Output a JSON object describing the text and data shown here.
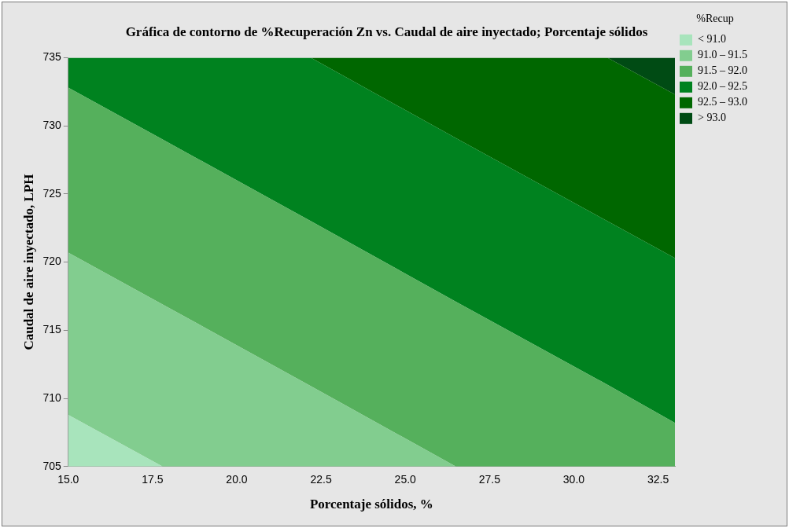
{
  "chart_data": {
    "type": "area",
    "title": "Gráfica de contorno de %Recuperación Zn vs. Caudal de aire inyectado; Porcentaje sólidos",
    "xlabel": "Porcentaje sólidos, %",
    "ylabel": "Caudal de aire inyectado, LPH",
    "legend_title": "%Recup",
    "legend": "top right",
    "grid": false,
    "marker": "none",
    "x": [
      15,
      17.8,
      22.2,
      26.5,
      31.0,
      33
    ],
    "series": [
      {
        "name": "< 91.0",
        "color": "#a8e4bc",
        "values": [
          708.8,
          705,
          705,
          705,
          705,
          705
        ]
      },
      {
        "name": "91.0 – 91.5",
        "color": "#82cd8f",
        "values": [
          720.7,
          716.9,
          710.9,
          705,
          705,
          705
        ]
      },
      {
        "name": "91.5 – 92.0",
        "color": "#55b05c",
        "values": [
          732.8,
          729.0,
          723.0,
          717.1,
          711.0,
          708.2
        ]
      },
      {
        "name": "92.0 – 92.5",
        "color": "#00821f",
        "values": [
          735,
          735,
          735,
          729.1,
          723.0,
          720.3
        ]
      },
      {
        "name": "92.5 – 93.0",
        "color": "#006700",
        "values": [
          735,
          735,
          735,
          735,
          735,
          732.3
        ]
      },
      {
        "name": "> 93.0",
        "color": "#004b14",
        "values": [
          735,
          735,
          735,
          735,
          735,
          735
        ]
      }
    ],
    "xlim": [
      15,
      33
    ],
    "xticks": [
      {
        "value": 15,
        "label": "15.0"
      },
      {
        "value": 17.5,
        "label": "17.5"
      },
      {
        "value": 20,
        "label": "20.0"
      },
      {
        "value": 22.5,
        "label": "22.5"
      },
      {
        "value": 25,
        "label": "25.0"
      },
      {
        "value": 27.5,
        "label": "27.5"
      },
      {
        "value": 30,
        "label": "30.0"
      },
      {
        "value": 32.5,
        "label": "32.5"
      }
    ],
    "ylim": [
      705,
      735
    ],
    "yticks": [
      705,
      710,
      715,
      720,
      725,
      730,
      735
    ]
  }
}
